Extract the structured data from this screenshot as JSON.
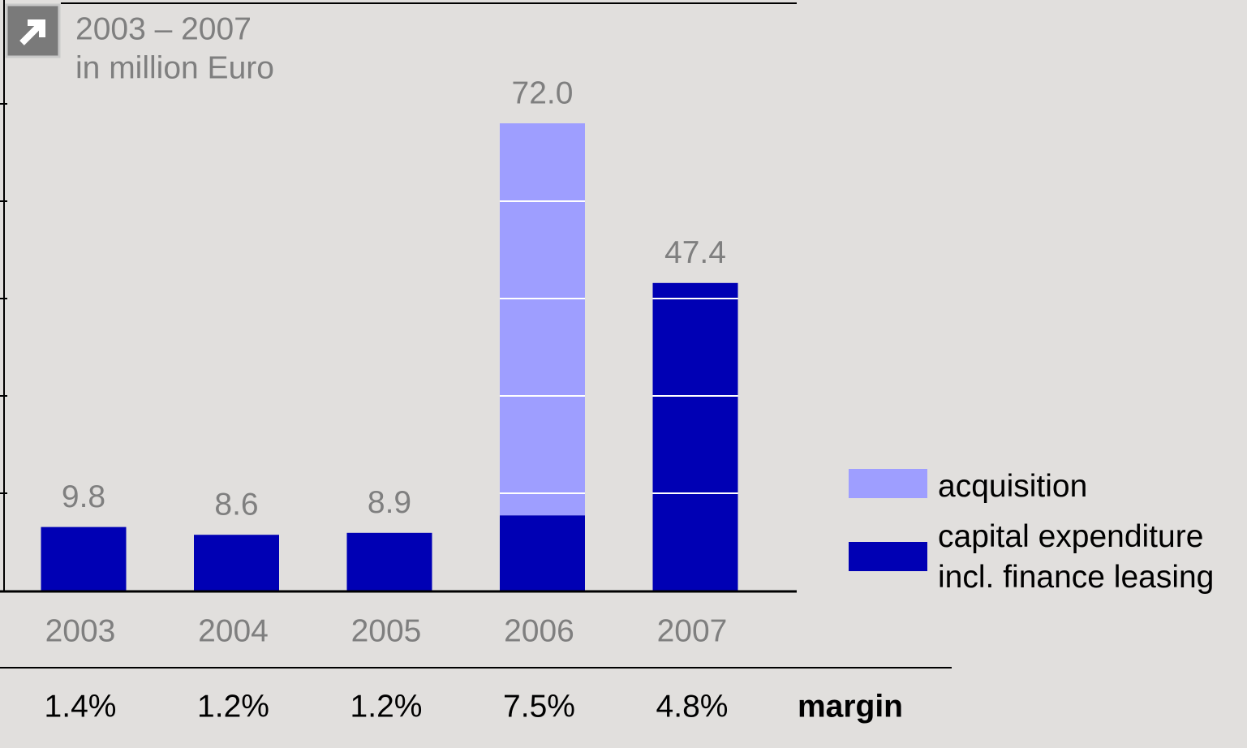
{
  "chart_data": {
    "type": "stacked_bar",
    "title": "2003 – 2007",
    "subtitle": "in million Euro",
    "categories": [
      "2003",
      "2004",
      "2005",
      "2006",
      "2007"
    ],
    "series": [
      {
        "name": "capital expenditure incl. finance leasing",
        "color": "#0000b4",
        "values": [
          9.8,
          8.6,
          8.9,
          11.6,
          47.4
        ]
      },
      {
        "name": "acquisition",
        "color": "#9e9eff",
        "values": [
          0,
          0,
          0,
          60.4,
          0
        ]
      }
    ],
    "totals": {
      "values": [
        9.8,
        8.6,
        8.9,
        72.0,
        47.4
      ],
      "value_labels": [
        "9.8",
        "8.6",
        "8.9",
        "72.0",
        "47.4"
      ]
    },
    "margin": {
      "name": "margin",
      "values": [
        1.4,
        1.2,
        1.2,
        7.5,
        4.8
      ],
      "value_labels": [
        "1.4%",
        "1.2%",
        "1.2%",
        "7.5%",
        "4.8%"
      ]
    },
    "ylim": [
      0,
      90
    ],
    "yticks": [
      0,
      15,
      30,
      45,
      60,
      75
    ],
    "grid": true
  }
}
